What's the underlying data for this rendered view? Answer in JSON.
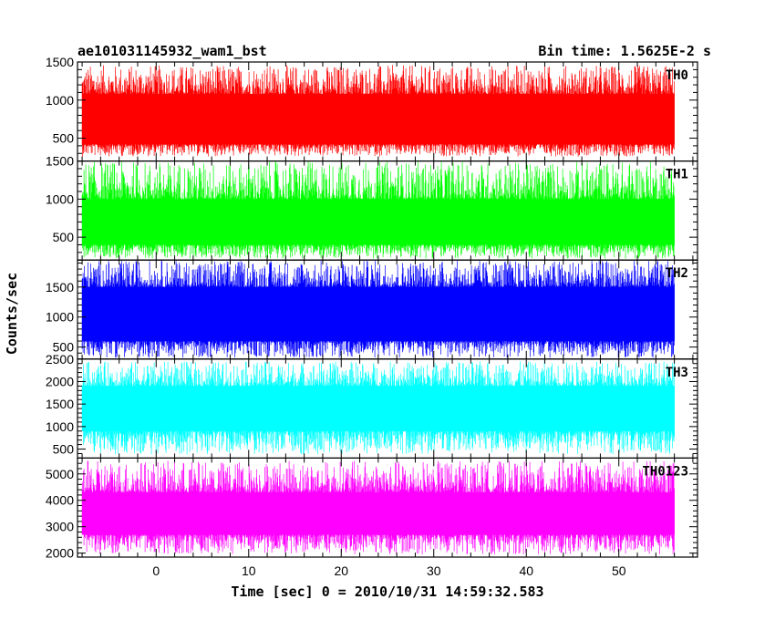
{
  "chart_data": {
    "type": "line",
    "title": "ae101031145932_wam1_bst",
    "subtitle": "Bin time: 1.5625E-2 s",
    "xlabel": "Time [sec] 0 = 2010/10/31 14:59:32.583",
    "ylabel": "Counts/sec",
    "xlim": [
      -8.5,
      58.5
    ],
    "x_ticks": [
      "0",
      "10",
      "20",
      "30",
      "40",
      "50"
    ],
    "x_tick_values": [
      0,
      10,
      20,
      30,
      40,
      50
    ],
    "data_x_range": [
      -8,
      56
    ],
    "grid": false,
    "panels": [
      {
        "name": "TH0",
        "color": "#ff0000",
        "ylim": [
          200,
          1500
        ],
        "y_ticks": [
          "500",
          "1000",
          "1500"
        ],
        "y_tick_values": [
          500,
          1000,
          1500
        ],
        "envelope_low": 260,
        "envelope_high": 1460,
        "band_low": 420,
        "band_high": 1080,
        "typical_level": 700
      },
      {
        "name": "TH1",
        "color": "#00ff00",
        "ylim": [
          200,
          1500
        ],
        "y_ticks": [
          "500",
          "1000",
          "1500"
        ],
        "y_tick_values": [
          500,
          1000,
          1500
        ],
        "envelope_low": 220,
        "envelope_high": 1500,
        "band_low": 400,
        "band_high": 1000,
        "typical_level": 650
      },
      {
        "name": "TH2",
        "color": "#0000ff",
        "ylim": [
          300,
          1950
        ],
        "y_ticks": [
          "500",
          "1000",
          "1500"
        ],
        "y_tick_values": [
          500,
          1000,
          1500
        ],
        "envelope_low": 320,
        "envelope_high": 1950,
        "band_low": 600,
        "band_high": 1500,
        "typical_level": 1000
      },
      {
        "name": "TH3",
        "color": "#00ffff",
        "ylim": [
          300,
          2500
        ],
        "y_ticks": [
          "500",
          "1000",
          "1500",
          "2000",
          "2500"
        ],
        "y_tick_values": [
          500,
          1000,
          1500,
          2000,
          2500
        ],
        "envelope_low": 380,
        "envelope_high": 2450,
        "band_low": 900,
        "band_high": 1900,
        "typical_level": 1400
      },
      {
        "name": "TH0123",
        "color": "#ff00ff",
        "ylim": [
          1850,
          5600
        ],
        "y_ticks": [
          "2000",
          "3000",
          "4000",
          "5000"
        ],
        "y_tick_values": [
          2000,
          3000,
          4000,
          5000
        ],
        "envelope_low": 1950,
        "envelope_high": 5500,
        "band_low": 2700,
        "band_high": 4300,
        "typical_level": 3500
      }
    ]
  }
}
